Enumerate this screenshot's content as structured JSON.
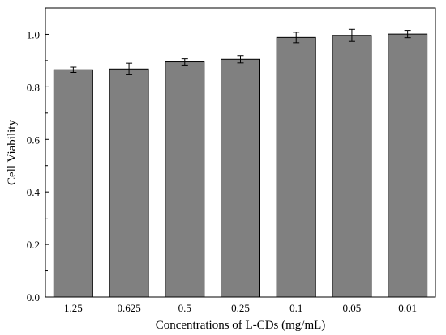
{
  "chart_data": {
    "type": "bar",
    "categories": [
      "1.25",
      "0.625",
      "0.5",
      "0.25",
      "0.1",
      "0.05",
      "0.01"
    ],
    "values": [
      0.865,
      0.868,
      0.895,
      0.905,
      0.988,
      0.996,
      1.001
    ],
    "errors": [
      0.01,
      0.022,
      0.012,
      0.014,
      0.02,
      0.023,
      0.014
    ],
    "yticks": [
      "0.0",
      "0.2",
      "0.4",
      "0.6",
      "0.8",
      "1.0"
    ],
    "ylim": [
      0,
      1.1
    ],
    "xlabel": "Concentrations of L-CDs (mg/mL)",
    "ylabel": "Cell Viability",
    "title": "",
    "bar_color": "#808080",
    "grid": false
  }
}
